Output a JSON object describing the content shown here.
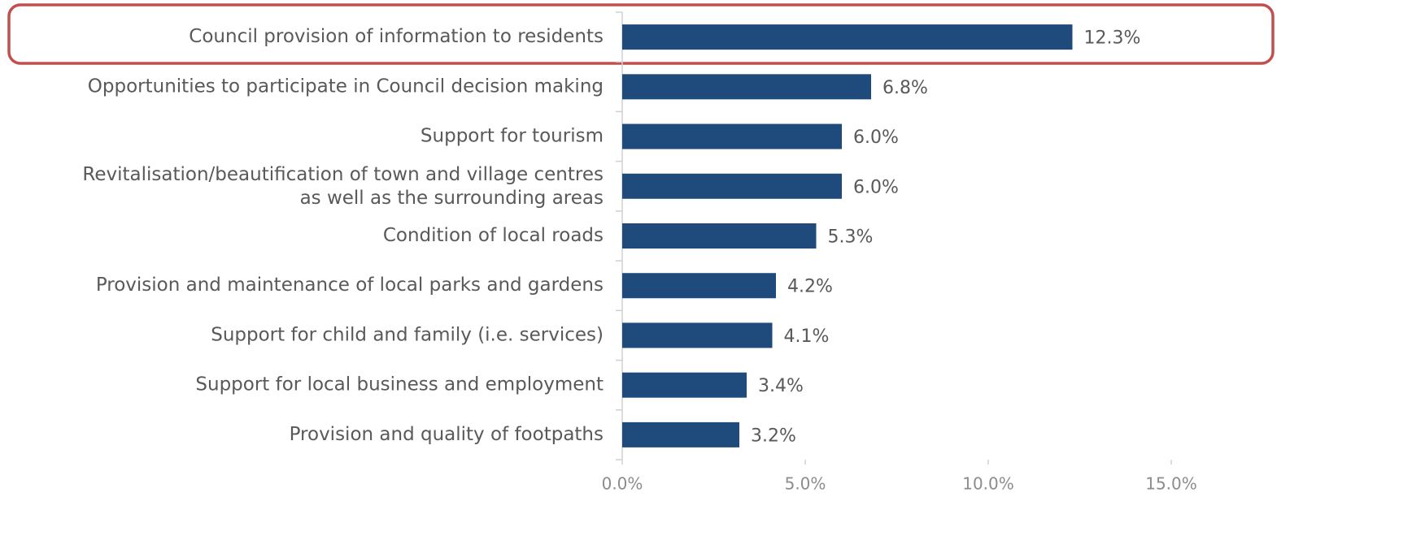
{
  "chart_data": {
    "type": "bar",
    "orientation": "horizontal",
    "categories": [
      "Council provision of information to residents",
      "Opportunities to participate in Council decision making",
      "Support for tourism",
      [
        "Revitalisation/beautification of town and village centres",
        "as well as the surrounding areas"
      ],
      "Condition of local roads",
      "Provision and maintenance of local parks and gardens",
      "Support for child and family (i.e. services)",
      "Support for local business and employment",
      "Provision and quality of footpaths"
    ],
    "values": [
      12.3,
      6.8,
      6.0,
      6.0,
      5.3,
      4.2,
      4.1,
      3.4,
      3.2
    ],
    "value_labels": [
      "12.3%",
      "6.8%",
      "6.0%",
      "6.0%",
      "5.3%",
      "4.2%",
      "4.1%",
      "3.4%",
      "3.2%"
    ],
    "color": "#1f4a7c",
    "xlim": [
      0,
      15
    ],
    "xticks": [
      {
        "value": 0,
        "label": "0.0%"
      },
      {
        "value": 5,
        "label": "5.0%"
      },
      {
        "value": 10,
        "label": "10.0%"
      },
      {
        "value": 15,
        "label": "15.0%"
      }
    ]
  }
}
